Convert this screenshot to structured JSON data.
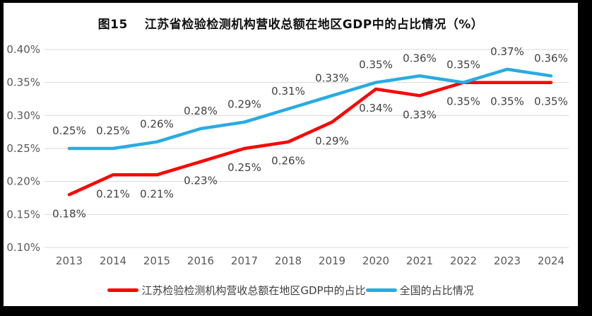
{
  "frame": {
    "border_color": "#000000",
    "background_color": "#ffffff"
  },
  "chart_data": {
    "type": "line",
    "title": "图15　 江苏省检验检测机构营收总额在地区GDP中的占比情况（%）",
    "xlabel": "",
    "ylabel": "",
    "categories": [
      "2013",
      "2014",
      "2015",
      "2016",
      "2017",
      "2018",
      "2019",
      "2020",
      "2021",
      "2022",
      "2023",
      "2024"
    ],
    "y_ticks": [
      "0.40%",
      "0.35%",
      "0.30%",
      "0.25%",
      "0.20%",
      "0.15%",
      "0.10%"
    ],
    "ylim": [
      0.1,
      0.4
    ],
    "grid": true,
    "legend_position": "bottom",
    "gridline_color": "#d9d9d9",
    "axis_text_color": "#595959",
    "data_label_color": "#404040",
    "series": [
      {
        "name": "江苏检验检测机构营收总额在地区GDP中的占比",
        "color": "#ff0000",
        "values": [
          0.18,
          0.21,
          0.21,
          0.23,
          0.25,
          0.26,
          0.29,
          0.34,
          0.33,
          0.35,
          0.35,
          0.35
        ],
        "labels": [
          "0.18%",
          "0.21%",
          "0.21%",
          "0.23%",
          "0.25%",
          "0.26%",
          "0.29%",
          "0.34%",
          "0.33%",
          "0.35%",
          "0.35%",
          "0.35%"
        ],
        "label_position": "below"
      },
      {
        "name": "全国的占比情况",
        "color": "#29abe2",
        "values": [
          0.25,
          0.25,
          0.26,
          0.28,
          0.29,
          0.31,
          0.33,
          0.35,
          0.36,
          0.35,
          0.37,
          0.36
        ],
        "labels": [
          "0.25%",
          "0.25%",
          "0.26%",
          "0.28%",
          "0.29%",
          "0.31%",
          "0.33%",
          "0.35%",
          "0.36%",
          "0.35%",
          "0.37%",
          "0.36%"
        ],
        "label_position": "above"
      }
    ]
  }
}
